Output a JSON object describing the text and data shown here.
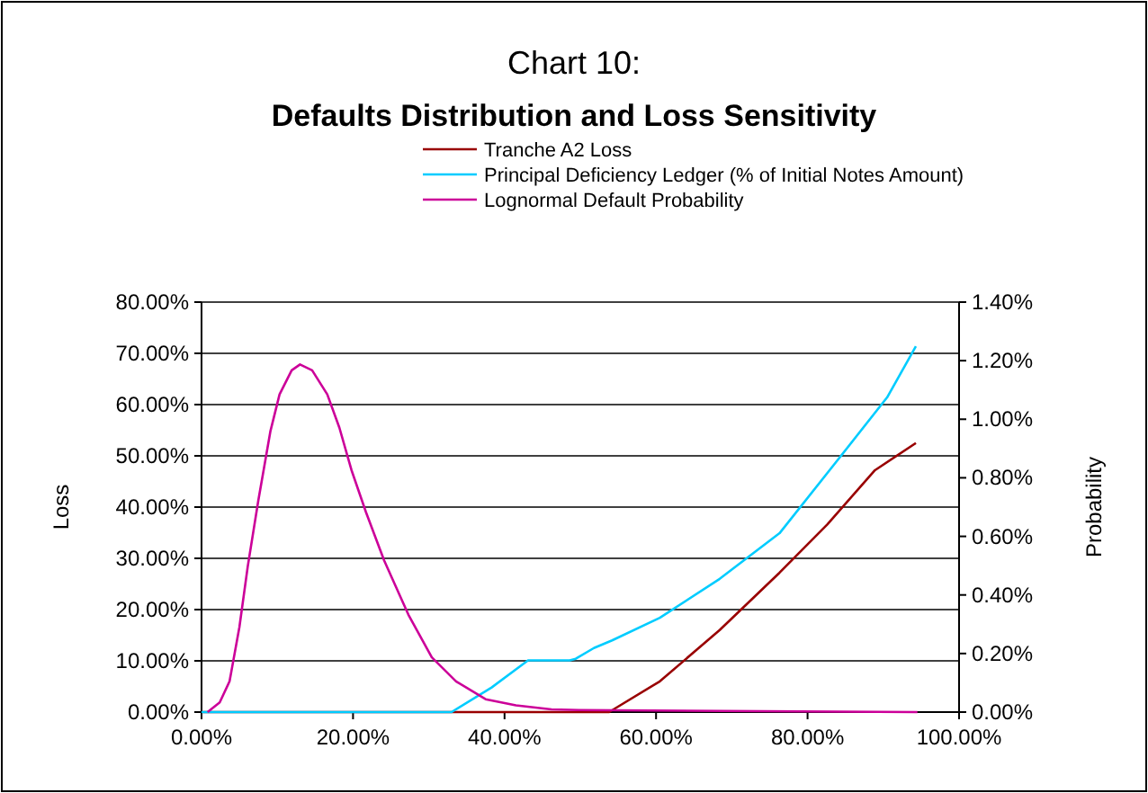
{
  "chart_data": {
    "type": "line",
    "title": "Chart 10:",
    "subtitle": "Defaults Distribution and Loss Sensitivity",
    "ylabel": "Loss",
    "y2label": "Probability",
    "xlim": [
      0,
      100
    ],
    "xticks": [
      {
        "value": 0,
        "label": "0.00%"
      },
      {
        "value": 20,
        "label": "20.00%"
      },
      {
        "value": 40,
        "label": "40.00%"
      },
      {
        "value": 60,
        "label": "60.00%"
      },
      {
        "value": 80,
        "label": "80.00%"
      },
      {
        "value": 100,
        "label": "100.00%"
      }
    ],
    "ylim": [
      0,
      80
    ],
    "yticks": [
      {
        "value": 0,
        "label": "0.00%"
      },
      {
        "value": 10,
        "label": "10.00%"
      },
      {
        "value": 20,
        "label": "20.00%"
      },
      {
        "value": 30,
        "label": "30.00%"
      },
      {
        "value": 40,
        "label": "40.00%"
      },
      {
        "value": 50,
        "label": "50.00%"
      },
      {
        "value": 60,
        "label": "60.00%"
      },
      {
        "value": 70,
        "label": "70.00%"
      },
      {
        "value": 80,
        "label": "80.00%"
      }
    ],
    "y2lim": [
      0,
      1.4
    ],
    "y2ticks": [
      {
        "value": 0,
        "label": "0.00%"
      },
      {
        "value": 0.2,
        "label": "0.20%"
      },
      {
        "value": 0.4,
        "label": "0.40%"
      },
      {
        "value": 0.6,
        "label": "0.60%"
      },
      {
        "value": 0.8,
        "label": "0.80%"
      },
      {
        "value": 1.0,
        "label": "1.00%"
      },
      {
        "value": 1.2,
        "label": "1.20%"
      },
      {
        "value": 1.4,
        "label": "1.40%"
      }
    ],
    "grid": "y",
    "legend": "top",
    "marker": "none",
    "line_style": "solid",
    "series": [
      {
        "name": "Tranche A2 Loss",
        "color": "#990000",
        "x": [
          0,
          33,
          53.8,
          60.5,
          68.4,
          76.3,
          82.6,
          88.9,
          94.3
        ],
        "values": [
          0,
          0,
          0,
          6.0,
          16.0,
          27.2,
          36.6,
          47.2,
          52.5
        ]
      },
      {
        "name": "Principal Deficiency Ledger (% of Initial Notes Amount)",
        "color": "#00ccff",
        "x": [
          0,
          33.0,
          38.3,
          43.1,
          48.6,
          49.4,
          51.8,
          54.2,
          60.5,
          68.4,
          76.3,
          84.2,
          90.5,
          94.3
        ],
        "values": [
          0,
          0,
          4.8,
          10.1,
          10.1,
          10.4,
          12.5,
          14.0,
          18.4,
          26.0,
          34.9,
          49.6,
          61.4,
          71.4
        ]
      },
      {
        "name": "Lognormal Default Probability",
        "color": "#cc0099",
        "axis": "y2",
        "x": [
          0.8,
          2.4,
          3.7,
          5.0,
          6.1,
          7.5,
          9.1,
          10.3,
          11.9,
          13.0,
          14.6,
          16.6,
          18.2,
          19.8,
          21.7,
          24.1,
          27.3,
          30.4,
          33.6,
          37.5,
          41.5,
          46.2,
          49.8,
          94.5
        ],
        "values": [
          0,
          0.033,
          0.105,
          0.29,
          0.497,
          0.723,
          0.96,
          1.085,
          1.167,
          1.187,
          1.167,
          1.085,
          0.971,
          0.826,
          0.683,
          0.518,
          0.333,
          0.187,
          0.105,
          0.044,
          0.023,
          0.009,
          0.007,
          0
        ]
      }
    ]
  }
}
